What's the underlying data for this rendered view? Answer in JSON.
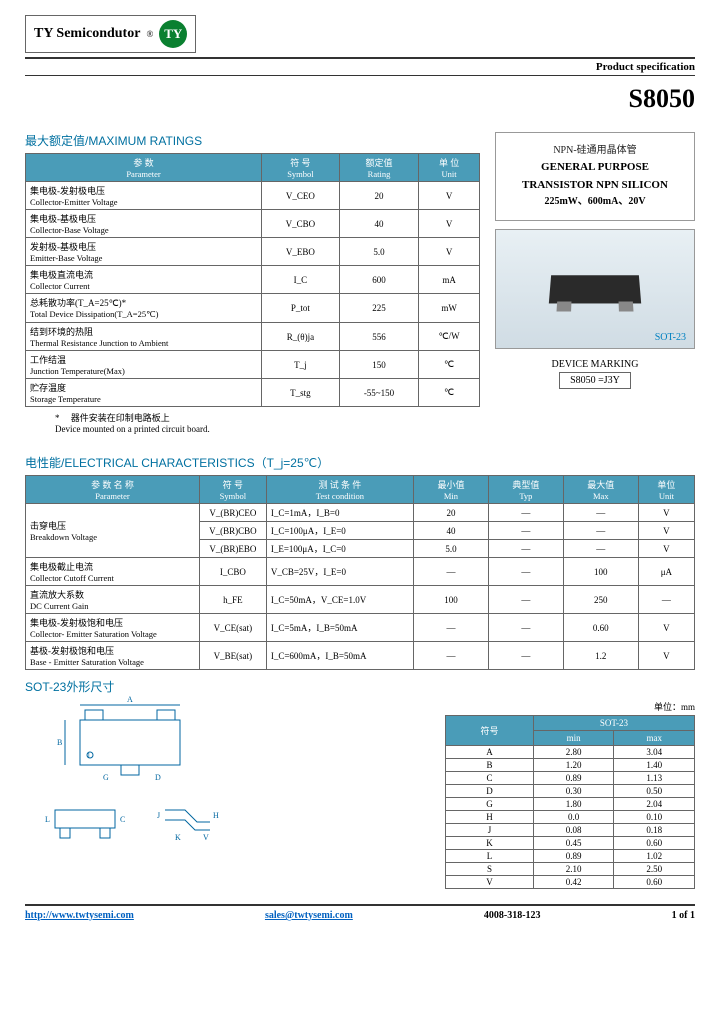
{
  "header": {
    "brand": "TY Semicondutor",
    "logo": "TY"
  },
  "prodSpec": "Product specification",
  "partNumber": "S8050",
  "maxRatings": {
    "title": "最大额定值/MAXIMUM RATINGS",
    "headers": {
      "param_cn": "参 数",
      "param_en": "Parameter",
      "symbol_cn": "符 号",
      "symbol_en": "Symbol",
      "rating_cn": "额定值",
      "rating_en": "Rating",
      "unit_cn": "单 位",
      "unit_en": "Unit"
    },
    "rows": [
      {
        "pcn": "集电极-发射极电压",
        "pen": "Collector-Emitter Voltage",
        "sym": "V_CEO",
        "rating": "20",
        "unit": "V"
      },
      {
        "pcn": "集电极-基极电压",
        "pen": "Collector-Base Voltage",
        "sym": "V_CBO",
        "rating": "40",
        "unit": "V"
      },
      {
        "pcn": "发射极-基极电压",
        "pen": "Emitter-Base Voltage",
        "sym": "V_EBO",
        "rating": "5.0",
        "unit": "V"
      },
      {
        "pcn": "集电极直流电流",
        "pen": "Collector Current",
        "sym": "I_C",
        "rating": "600",
        "unit": "mA"
      },
      {
        "pcn": "总耗散功率(T_A=25℃)*",
        "pen": "Total Device Dissipation(T_A=25℃)",
        "sym": "P_tot",
        "rating": "225",
        "unit": "mW"
      },
      {
        "pcn": "结到环境的热阻",
        "pen": "Thermal Resistance Junction to Ambient",
        "sym": "R_(θ)ja",
        "rating": "556",
        "unit": "℃/W"
      },
      {
        "pcn": "工作结温",
        "pen": "Junction Temperature(Max)",
        "sym": "T_j",
        "rating": "150",
        "unit": "℃"
      },
      {
        "pcn": "贮存温度",
        "pen": "Storage Temperature",
        "sym": "T_stg",
        "rating": "-55~150",
        "unit": "℃"
      }
    ],
    "note_cn": "* 　器件安装在印制电路板上",
    "note_en": "Device mounted on a printed circuit board."
  },
  "productBox": {
    "cn": "NPN-硅通用晶体管",
    "en1": "GENERAL PURPOSE",
    "en2": "TRANSISTOR NPN SILICON",
    "specs": "225mW、600mA、20V",
    "pkg": "SOT-23"
  },
  "marking": {
    "label": "DEVICE MARKING",
    "value": "S8050 =J3Y"
  },
  "elecChar": {
    "title": "电性能/ELECTRICAL CHARACTERISTICS（T_j=25℃）",
    "headers": {
      "param_cn": "参 数 名 称",
      "param_en": "Parameter",
      "symbol_cn": "符 号",
      "symbol_en": "Symbol",
      "cond_cn": "测 试 条 件",
      "cond_en": "Test condition",
      "min_cn": "最小值",
      "min_en": "Min",
      "typ_cn": "典型值",
      "typ_en": "Typ",
      "max_cn": "最大值",
      "max_en": "Max",
      "unit_cn": "单位",
      "unit_en": "Unit"
    },
    "rows": [
      {
        "pcn": "击穿电压",
        "pen": "Breakdown Voltage",
        "sym": "V_(BR)CEO",
        "cond": "I_C=1mA，I_B=0",
        "min": "20",
        "typ": "—",
        "max": "—",
        "unit": "V",
        "rowspan": 3
      },
      {
        "sym": "V_(BR)CBO",
        "cond": "I_C=100μA，I_E=0",
        "min": "40",
        "typ": "—",
        "max": "—",
        "unit": "V"
      },
      {
        "sym": "V_(BR)EBO",
        "cond": "I_E=100μA，I_C=0",
        "min": "5.0",
        "typ": "—",
        "max": "—",
        "unit": "V"
      },
      {
        "pcn": "集电极截止电流",
        "pen": "Collector Cutoff Current",
        "sym": "I_CBO",
        "cond": "V_CB=25V，I_E=0",
        "min": "—",
        "typ": "—",
        "max": "100",
        "unit": "μA"
      },
      {
        "pcn": "直流放大系数",
        "pen": "DC Current Gain",
        "sym": "h_FE",
        "cond": "I_C=50mA，V_CE=1.0V",
        "min": "100",
        "typ": "—",
        "max": "250",
        "unit": "—"
      },
      {
        "pcn": "集电极-发射极饱和电压",
        "pen": "Collector- Emitter Saturation Voltage",
        "sym": "V_CE(sat)",
        "cond": "I_C=5mA，I_B=50mA",
        "min": "—",
        "typ": "—",
        "max": "0.60",
        "unit": "V"
      },
      {
        "pcn": "基极-发射极饱和电压",
        "pen": "Base - Emitter Saturation Voltage",
        "sym": "V_BE(sat)",
        "cond": "I_C=600mA，I_B=50mA",
        "min": "—",
        "typ": "—",
        "max": "1.2",
        "unit": "V"
      }
    ]
  },
  "dimensions": {
    "title": "SOT-23外形尺寸",
    "unit": "单位：mm",
    "header": {
      "sym": "符号",
      "pkg": "SOT-23",
      "min": "min",
      "max": "max"
    },
    "rows": [
      {
        "s": "A",
        "min": "2.80",
        "max": "3.04"
      },
      {
        "s": "B",
        "min": "1.20",
        "max": "1.40"
      },
      {
        "s": "C",
        "min": "0.89",
        "max": "1.13"
      },
      {
        "s": "D",
        "min": "0.30",
        "max": "0.50"
      },
      {
        "s": "G",
        "min": "1.80",
        "max": "2.04"
      },
      {
        "s": "H",
        "min": "0.0",
        "max": "0.10"
      },
      {
        "s": "J",
        "min": "0.08",
        "max": "0.18"
      },
      {
        "s": "K",
        "min": "0.45",
        "max": "0.60"
      },
      {
        "s": "L",
        "min": "0.89",
        "max": "1.02"
      },
      {
        "s": "S",
        "min": "2.10",
        "max": "2.50"
      },
      {
        "s": "V",
        "min": "0.42",
        "max": "0.60"
      }
    ]
  },
  "footer": {
    "url": "http://www.twtysemi.com",
    "email": "sales@twtysemi.com",
    "phone": "4008-318-123",
    "page": "1 of 1"
  }
}
